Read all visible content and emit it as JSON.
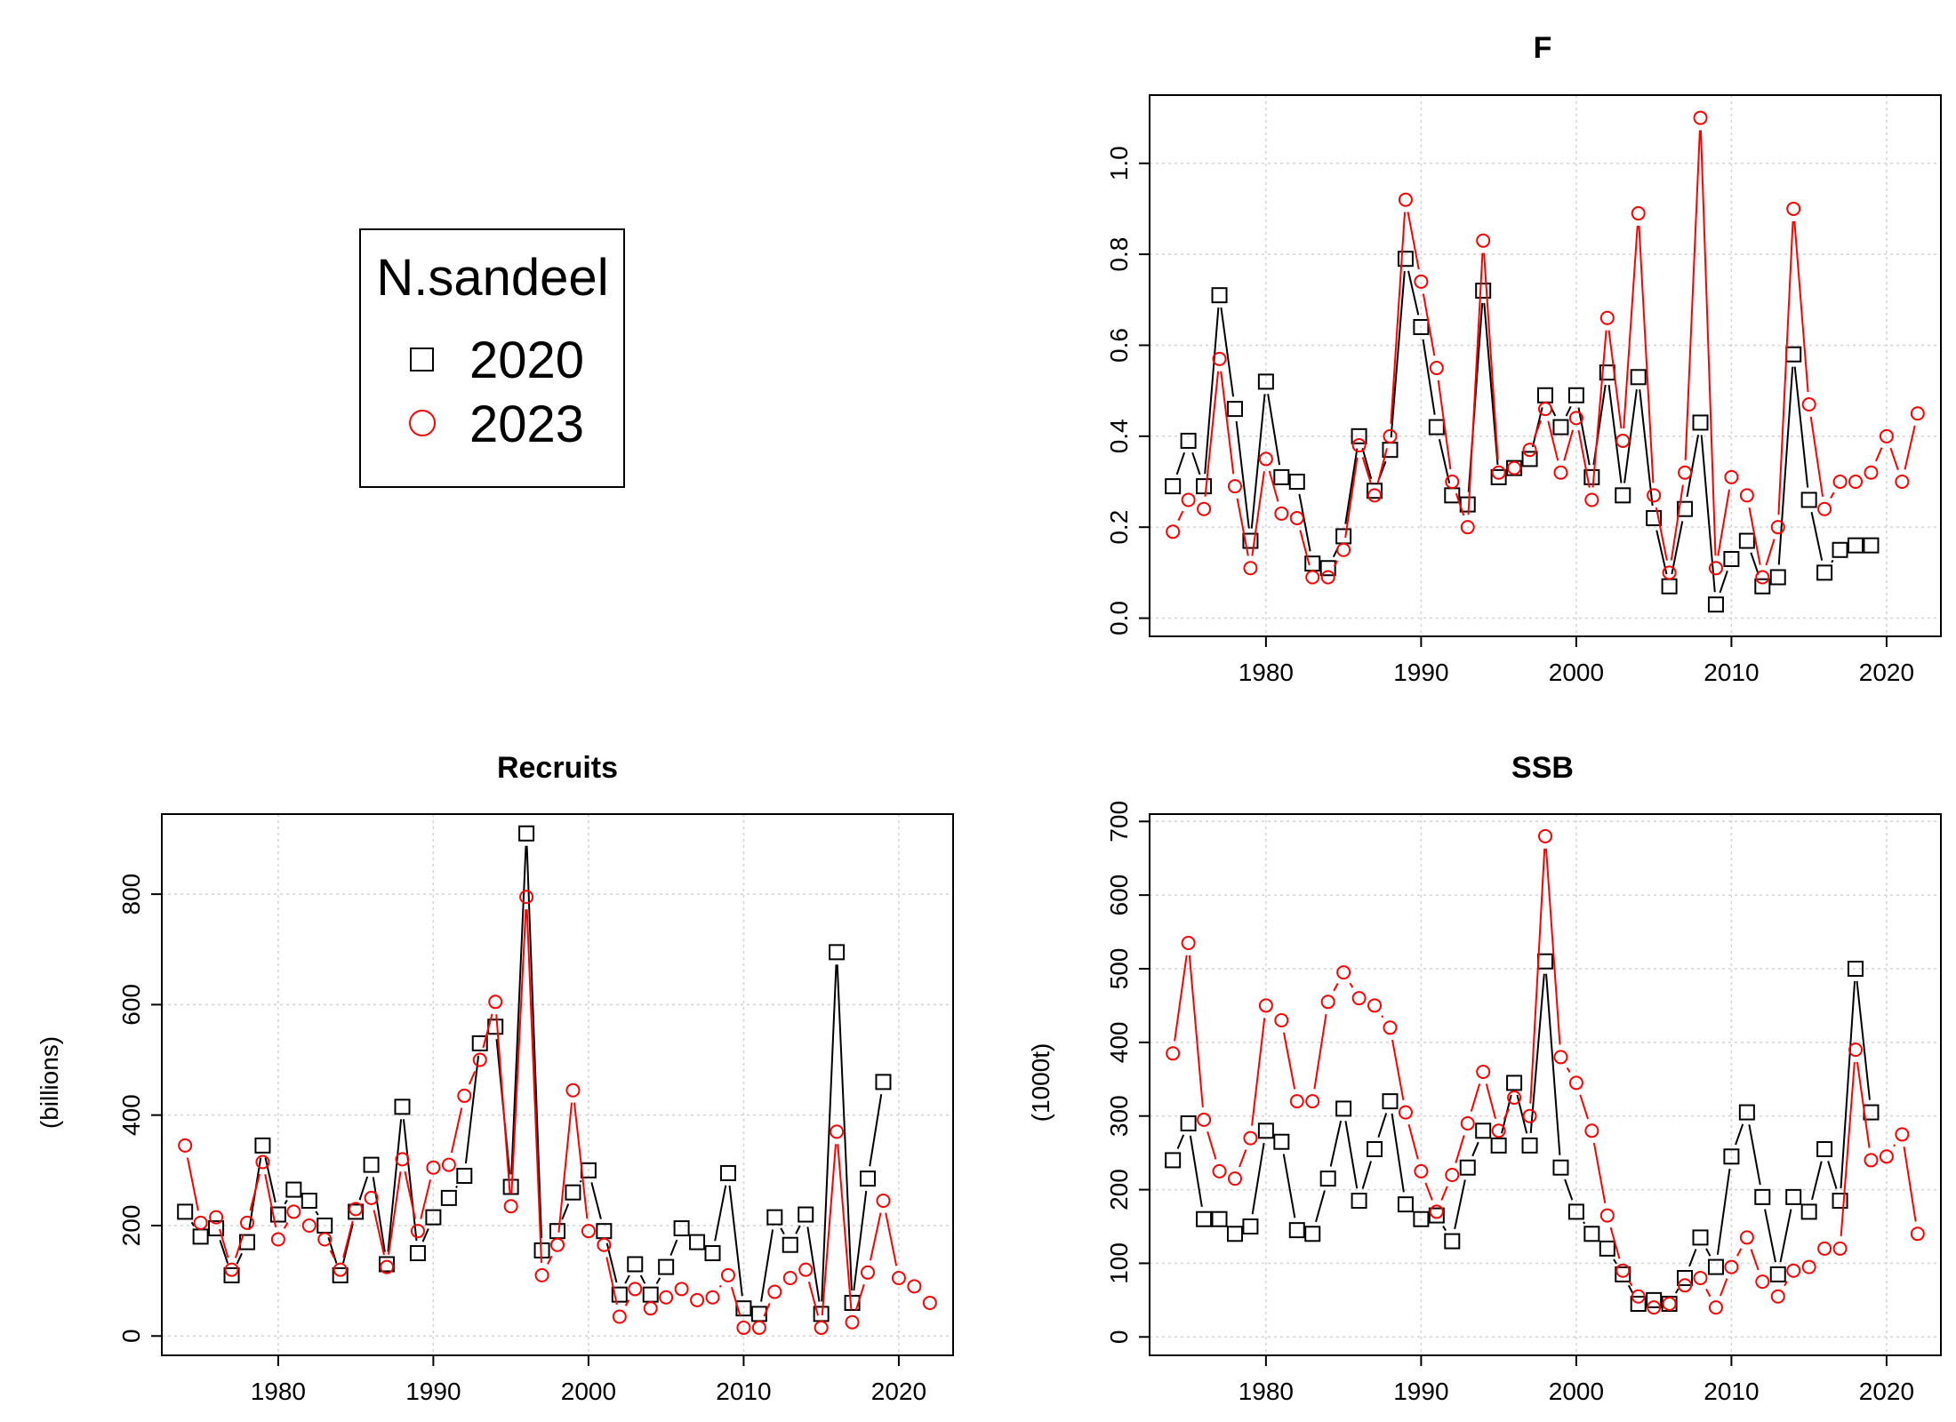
{
  "legend": {
    "title": "N.sandeel",
    "entries": [
      {
        "label": "2020",
        "marker": "square",
        "color": "#000000"
      },
      {
        "label": "2023",
        "marker": "circle",
        "color": "#ff0000"
      }
    ]
  },
  "chart_data": [
    {
      "type": "line",
      "title": "F",
      "xlabel": "",
      "ylabel": "",
      "xlim": [
        1972.5,
        2023.5
      ],
      "ylim": [
        -0.04,
        1.15
      ],
      "xticks": [
        1980,
        1990,
        2000,
        2010,
        2020
      ],
      "yticks": [
        0.0,
        0.2,
        0.4,
        0.6,
        0.8,
        1.0
      ],
      "ytick_labels": [
        "0.0",
        "0.2",
        "0.4",
        "0.6",
        "0.8",
        "1.0"
      ],
      "grid": true,
      "series": [
        {
          "name": "2020",
          "color": "#000000",
          "marker": "square",
          "x": [
            1974,
            1975,
            1976,
            1977,
            1978,
            1979,
            1980,
            1981,
            1982,
            1983,
            1984,
            1985,
            1986,
            1987,
            1988,
            1989,
            1990,
            1991,
            1992,
            1993,
            1994,
            1995,
            1996,
            1997,
            1998,
            1999,
            2000,
            2001,
            2002,
            2003,
            2004,
            2005,
            2006,
            2007,
            2008,
            2009,
            2010,
            2011,
            2012,
            2013,
            2014,
            2015,
            2016,
            2017,
            2018,
            2019
          ],
          "y": [
            0.29,
            0.39,
            0.29,
            0.71,
            0.46,
            0.17,
            0.52,
            0.31,
            0.3,
            0.12,
            0.11,
            0.18,
            0.4,
            0.28,
            0.37,
            0.79,
            0.64,
            0.42,
            0.27,
            0.25,
            0.72,
            0.31,
            0.33,
            0.35,
            0.49,
            0.42,
            0.49,
            0.31,
            0.54,
            0.27,
            0.53,
            0.22,
            0.07,
            0.24,
            0.43,
            0.03,
            0.13,
            0.17,
            0.07,
            0.09,
            0.58,
            0.26,
            0.1,
            0.15,
            0.16,
            0.16
          ]
        },
        {
          "name": "2023",
          "color": "#ff0000",
          "marker": "circle",
          "x": [
            1974,
            1975,
            1976,
            1977,
            1978,
            1979,
            1980,
            1981,
            1982,
            1983,
            1984,
            1985,
            1986,
            1987,
            1988,
            1989,
            1990,
            1991,
            1992,
            1993,
            1994,
            1995,
            1996,
            1997,
            1998,
            1999,
            2000,
            2001,
            2002,
            2003,
            2004,
            2005,
            2006,
            2007,
            2008,
            2009,
            2010,
            2011,
            2012,
            2013,
            2014,
            2015,
            2016,
            2017,
            2018,
            2019,
            2020,
            2021,
            2022
          ],
          "y": [
            0.19,
            0.26,
            0.24,
            0.57,
            0.29,
            0.11,
            0.35,
            0.23,
            0.22,
            0.09,
            0.09,
            0.15,
            0.38,
            0.27,
            0.4,
            0.92,
            0.74,
            0.55,
            0.3,
            0.2,
            0.83,
            0.32,
            0.33,
            0.37,
            0.46,
            0.32,
            0.44,
            0.26,
            0.66,
            0.39,
            0.89,
            0.27,
            0.1,
            0.32,
            1.1,
            0.11,
            0.31,
            0.27,
            0.09,
            0.2,
            0.9,
            0.47,
            0.24,
            0.3,
            0.3,
            0.32,
            0.4,
            0.3,
            0.45
          ]
        }
      ]
    },
    {
      "type": "line",
      "title": "Recruits",
      "xlabel": "",
      "ylabel": "(billions)",
      "xlim": [
        1972.5,
        2023.5
      ],
      "ylim": [
        -35,
        945
      ],
      "xticks": [
        1980,
        1990,
        2000,
        2010,
        2020
      ],
      "yticks": [
        0,
        200,
        400,
        600,
        800
      ],
      "ytick_labels": [
        "0",
        "200",
        "400",
        "600",
        "800"
      ],
      "grid": true,
      "series": [
        {
          "name": "2020",
          "color": "#000000",
          "marker": "square",
          "x": [
            1974,
            1975,
            1976,
            1977,
            1978,
            1979,
            1980,
            1981,
            1982,
            1983,
            1984,
            1985,
            1986,
            1987,
            1988,
            1989,
            1990,
            1991,
            1992,
            1993,
            1994,
            1995,
            1996,
            1997,
            1998,
            1999,
            2000,
            2001,
            2002,
            2003,
            2004,
            2005,
            2006,
            2007,
            2008,
            2009,
            2010,
            2011,
            2012,
            2013,
            2014,
            2015,
            2016,
            2017,
            2018,
            2019
          ],
          "y": [
            225,
            180,
            195,
            110,
            170,
            345,
            220,
            265,
            245,
            200,
            110,
            225,
            310,
            130,
            415,
            150,
            215,
            250,
            290,
            530,
            560,
            270,
            910,
            155,
            190,
            260,
            300,
            190,
            75,
            130,
            75,
            125,
            195,
            170,
            150,
            295,
            50,
            40,
            215,
            165,
            220,
            40,
            695,
            60,
            285,
            460
          ]
        },
        {
          "name": "2023",
          "color": "#ff0000",
          "marker": "circle",
          "x": [
            1974,
            1975,
            1976,
            1977,
            1978,
            1979,
            1980,
            1981,
            1982,
            1983,
            1984,
            1985,
            1986,
            1987,
            1988,
            1989,
            1990,
            1991,
            1992,
            1993,
            1994,
            1995,
            1996,
            1997,
            1998,
            1999,
            2000,
            2001,
            2002,
            2003,
            2004,
            2005,
            2006,
            2007,
            2008,
            2009,
            2010,
            2011,
            2012,
            2013,
            2014,
            2015,
            2016,
            2017,
            2018,
            2019,
            2020,
            2021,
            2022
          ],
          "y": [
            345,
            205,
            215,
            120,
            205,
            315,
            175,
            225,
            200,
            175,
            120,
            230,
            250,
            125,
            320,
            190,
            305,
            310,
            435,
            500,
            605,
            235,
            795,
            110,
            165,
            445,
            190,
            165,
            35,
            85,
            50,
            70,
            85,
            65,
            70,
            110,
            15,
            15,
            80,
            105,
            120,
            15,
            370,
            25,
            115,
            245,
            105,
            90,
            60
          ]
        }
      ]
    },
    {
      "type": "line",
      "title": "SSB",
      "xlabel": "",
      "ylabel": "(1000t)",
      "xlim": [
        1972.5,
        2023.5
      ],
      "ylim": [
        -25,
        710
      ],
      "xticks": [
        1980,
        1990,
        2000,
        2010,
        2020
      ],
      "yticks": [
        0,
        100,
        200,
        300,
        400,
        500,
        600,
        700
      ],
      "ytick_labels": [
        "0",
        "100",
        "200",
        "300",
        "400",
        "500",
        "600",
        "700"
      ],
      "grid": true,
      "series": [
        {
          "name": "2020",
          "color": "#000000",
          "marker": "square",
          "x": [
            1974,
            1975,
            1976,
            1977,
            1978,
            1979,
            1980,
            1981,
            1982,
            1983,
            1984,
            1985,
            1986,
            1987,
            1988,
            1989,
            1990,
            1991,
            1992,
            1993,
            1994,
            1995,
            1996,
            1997,
            1998,
            1999,
            2000,
            2001,
            2002,
            2003,
            2004,
            2005,
            2006,
            2007,
            2008,
            2009,
            2010,
            2011,
            2012,
            2013,
            2014,
            2015,
            2016,
            2017,
            2018,
            2019
          ],
          "y": [
            240,
            290,
            160,
            160,
            140,
            150,
            280,
            265,
            145,
            140,
            215,
            310,
            185,
            255,
            320,
            180,
            160,
            165,
            130,
            230,
            280,
            260,
            345,
            260,
            510,
            230,
            170,
            140,
            120,
            85,
            45,
            50,
            45,
            80,
            135,
            95,
            245,
            305,
            190,
            85,
            190,
            170,
            255,
            185,
            500,
            305
          ]
        },
        {
          "name": "2023",
          "color": "#ff0000",
          "marker": "circle",
          "x": [
            1974,
            1975,
            1976,
            1977,
            1978,
            1979,
            1980,
            1981,
            1982,
            1983,
            1984,
            1985,
            1986,
            1987,
            1988,
            1989,
            1990,
            1991,
            1992,
            1993,
            1994,
            1995,
            1996,
            1997,
            1998,
            1999,
            2000,
            2001,
            2002,
            2003,
            2004,
            2005,
            2006,
            2007,
            2008,
            2009,
            2010,
            2011,
            2012,
            2013,
            2014,
            2015,
            2016,
            2017,
            2018,
            2019,
            2020,
            2021,
            2022
          ],
          "y": [
            385,
            535,
            295,
            225,
            215,
            270,
            450,
            430,
            320,
            320,
            455,
            495,
            460,
            450,
            420,
            305,
            225,
            170,
            220,
            290,
            360,
            280,
            325,
            300,
            680,
            380,
            345,
            280,
            165,
            90,
            55,
            40,
            45,
            70,
            80,
            40,
            95,
            135,
            75,
            55,
            90,
            95,
            120,
            120,
            390,
            240,
            245,
            275,
            140
          ]
        }
      ]
    }
  ]
}
